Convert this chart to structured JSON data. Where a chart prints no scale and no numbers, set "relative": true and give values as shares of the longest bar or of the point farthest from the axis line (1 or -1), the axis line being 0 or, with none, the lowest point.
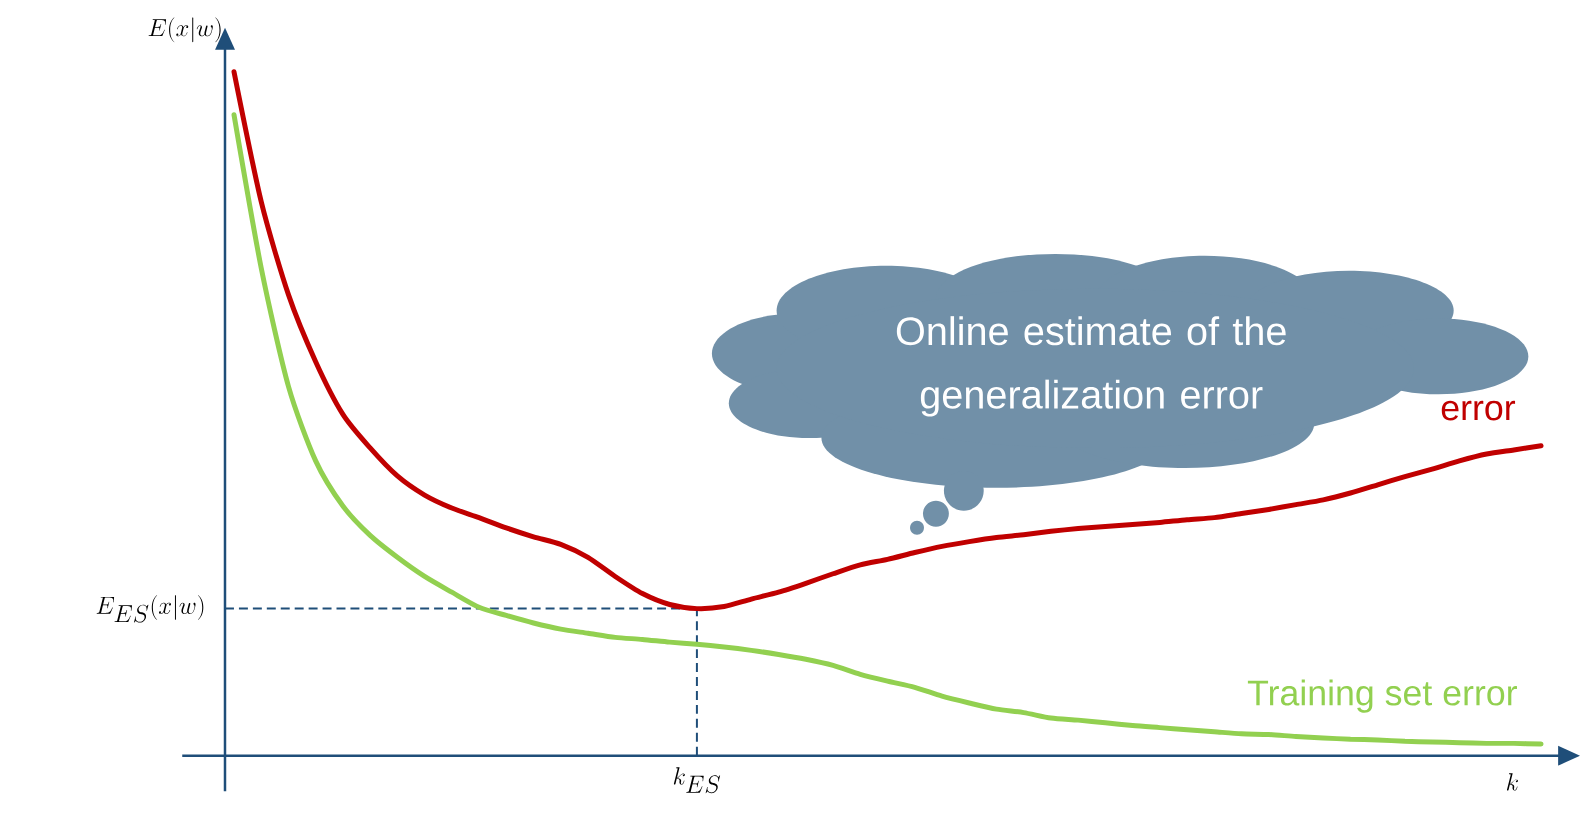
{
  "chart_data": {
    "type": "line",
    "relative": true,
    "xlabel": "k",
    "ylabel": "E(x|w)",
    "categories": [
      null,
      null,
      null,
      null,
      null,
      null,
      null,
      null,
      null,
      null,
      null,
      null,
      null,
      null,
      null,
      null,
      null,
      null,
      null,
      null,
      null,
      null,
      null,
      null,
      null,
      null,
      null,
      null,
      null,
      null,
      null,
      null,
      null,
      null,
      null,
      null,
      null,
      null,
      null,
      null,
      null,
      null,
      null,
      null,
      null,
      null,
      null,
      null,
      null
    ],
    "series": [
      {
        "name": "error",
        "color": "#c00000",
        "values": [
          1.0,
          0.81,
          0.674,
          0.576,
          0.499,
          0.45,
          0.409,
          0.381,
          0.362,
          0.348,
          0.333,
          0.32,
          0.309,
          0.29,
          0.262,
          0.237,
          0.221,
          0.215,
          0.218,
          0.229,
          0.239,
          0.252,
          0.266,
          0.279,
          0.287,
          0.297,
          0.306,
          0.313,
          0.319,
          0.323,
          0.328,
          0.332,
          0.335,
          0.338,
          0.341,
          0.345,
          0.348,
          0.354,
          0.36,
          0.367,
          0.374,
          0.384,
          0.396,
          0.408,
          0.419,
          0.431,
          0.441,
          0.447,
          0.453
        ]
      },
      {
        "name": "Training set error",
        "color": "#92d050",
        "values": [
          0.937,
          0.713,
          0.54,
          0.431,
          0.365,
          0.322,
          0.29,
          0.262,
          0.239,
          0.217,
          0.205,
          0.194,
          0.185,
          0.179,
          0.173,
          0.17,
          0.166,
          0.163,
          0.159,
          0.154,
          0.148,
          0.141,
          0.132,
          0.119,
          0.109,
          0.1,
          0.087,
          0.077,
          0.068,
          0.063,
          0.055,
          0.052,
          0.048,
          0.044,
          0.041,
          0.038,
          0.035,
          0.032,
          0.031,
          0.028,
          0.026,
          0.024,
          0.023,
          0.021,
          0.02,
          0.019,
          0.018,
          0.018,
          0.017
        ]
      }
    ],
    "ref_lines": [
      {
        "axis": "y",
        "value": 0.215,
        "label": "E_{ES}(x|w)",
        "color": "#1f4e79",
        "line_style": "dashed"
      }
    ],
    "annotations": [
      "Online estimate of the generalization error",
      "k_{ES}"
    ]
  }
}
